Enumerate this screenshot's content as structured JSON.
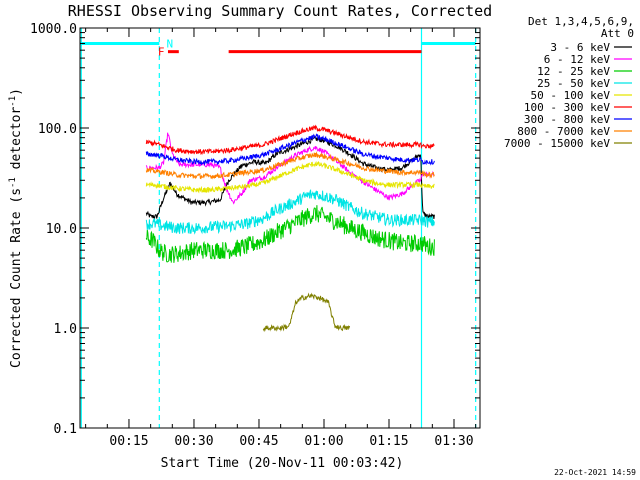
{
  "chart_data": {
    "type": "line",
    "title": "RHESSI Observing Summary Count Rates, Corrected",
    "xlabel": "Start Time (20-Nov-11 00:03:42)",
    "ylabel_main": "Corrected Count Rate (s",
    "ylabel_sup1": "-1",
    "ylabel_mid": " detector",
    "ylabel_sup2": "-1",
    "ylabel_end": ")",
    "yscale": "log",
    "ylim": [
      0.1,
      1000.0
    ],
    "xlim_minutes": [
      3.7,
      96.0
    ],
    "yticks": [
      {
        "value": 1000.0,
        "label": "1000.0"
      },
      {
        "value": 100.0,
        "label": "100.0"
      },
      {
        "value": 10.0,
        "label": "10.0"
      },
      {
        "value": 1.0,
        "label": "1.0"
      },
      {
        "value": 0.1,
        "label": "0.1"
      }
    ],
    "xticks": [
      {
        "value": 15,
        "label": "00:15"
      },
      {
        "value": 30,
        "label": "00:30"
      },
      {
        "value": 45,
        "label": "00:45"
      },
      {
        "value": 60,
        "label": "01:00"
      },
      {
        "value": 75,
        "label": "01:15"
      },
      {
        "value": 90,
        "label": "01:30"
      }
    ],
    "legend_header": [
      "Det 1,3,4,5,6,9,",
      "Att 0"
    ],
    "series": [
      {
        "name": "3 - 6 keV",
        "color": "#000000",
        "points": [
          [
            19.0,
            14
          ],
          [
            20.0,
            13
          ],
          [
            21.5,
            13
          ],
          [
            23.0,
            20
          ],
          [
            24.5,
            28
          ],
          [
            26.0,
            22
          ],
          [
            27.5,
            20
          ],
          [
            29.5,
            18
          ],
          [
            33.0,
            18
          ],
          [
            36.0,
            19
          ],
          [
            38.0,
            30
          ],
          [
            41.0,
            42
          ],
          [
            44.0,
            46
          ],
          [
            46.5,
            44
          ],
          [
            49.0,
            55
          ],
          [
            53.0,
            64
          ],
          [
            56.0,
            72
          ],
          [
            58.0,
            78
          ],
          [
            60.0,
            75
          ],
          [
            63.0,
            66
          ],
          [
            66.0,
            55
          ],
          [
            69.0,
            44
          ],
          [
            72.0,
            40
          ],
          [
            75.0,
            38
          ],
          [
            78.0,
            40
          ],
          [
            81.0,
            50
          ],
          [
            82.3,
            55
          ],
          [
            82.8,
            14
          ],
          [
            84.0,
            13
          ],
          [
            85.5,
            13
          ]
        ]
      },
      {
        "name": "6 - 12 keV",
        "color": "#ff00ff",
        "points": [
          [
            19.0,
            40
          ],
          [
            20.5,
            40
          ],
          [
            22.0,
            40
          ],
          [
            23.0,
            45
          ],
          [
            24.0,
            90
          ],
          [
            25.0,
            55
          ],
          [
            26.5,
            43
          ],
          [
            30.0,
            43
          ],
          [
            34.0,
            43
          ],
          [
            36.0,
            40
          ],
          [
            37.5,
            25
          ],
          [
            39.0,
            18
          ],
          [
            41.0,
            22
          ],
          [
            43.0,
            30
          ],
          [
            46.0,
            32
          ],
          [
            49.0,
            40
          ],
          [
            53.0,
            52
          ],
          [
            56.0,
            60
          ],
          [
            58.0,
            64
          ],
          [
            60.0,
            58
          ],
          [
            63.0,
            46
          ],
          [
            66.0,
            36
          ],
          [
            69.0,
            29
          ],
          [
            72.0,
            24
          ],
          [
            75.0,
            20
          ],
          [
            78.0,
            22
          ],
          [
            81.0,
            28
          ],
          [
            82.3,
            30
          ],
          [
            82.8,
            35
          ],
          [
            84.0,
            34
          ],
          [
            85.5,
            34
          ]
        ]
      },
      {
        "name": "12 - 25 keV",
        "color": "#00cc00",
        "points": [
          [
            19.0,
            8
          ],
          [
            20.5,
            7.5
          ],
          [
            22.0,
            6
          ],
          [
            23.5,
            5.5
          ],
          [
            26.0,
            5.5
          ],
          [
            30.0,
            6
          ],
          [
            34.0,
            6
          ],
          [
            38.0,
            6
          ],
          [
            42.0,
            6.5
          ],
          [
            46.0,
            7.5
          ],
          [
            49.0,
            9
          ],
          [
            53.0,
            11
          ],
          [
            56.0,
            13
          ],
          [
            58.0,
            14
          ],
          [
            60.0,
            13
          ],
          [
            63.0,
            11.5
          ],
          [
            66.0,
            10
          ],
          [
            69.0,
            9
          ],
          [
            72.0,
            8
          ],
          [
            75.0,
            7.5
          ],
          [
            78.0,
            7
          ],
          [
            81.0,
            7
          ],
          [
            82.3,
            7
          ],
          [
            82.8,
            7
          ],
          [
            84.0,
            6.5
          ],
          [
            85.5,
            6.5
          ]
        ]
      },
      {
        "name": "25 - 50 keV",
        "color": "#00e5e5",
        "points": [
          [
            19.0,
            11
          ],
          [
            21.0,
            11
          ],
          [
            23.0,
            10.5
          ],
          [
            26.0,
            10
          ],
          [
            30.0,
            10
          ],
          [
            34.0,
            10.2
          ],
          [
            38.0,
            10.5
          ],
          [
            42.0,
            11
          ],
          [
            46.0,
            12.5
          ],
          [
            49.0,
            15
          ],
          [
            53.0,
            18
          ],
          [
            56.0,
            21
          ],
          [
            58.0,
            22
          ],
          [
            60.0,
            21
          ],
          [
            63.0,
            19
          ],
          [
            66.0,
            16
          ],
          [
            69.0,
            14
          ],
          [
            72.0,
            13
          ],
          [
            75.0,
            12
          ],
          [
            78.0,
            12
          ],
          [
            81.0,
            12
          ],
          [
            82.3,
            12
          ],
          [
            82.8,
            12
          ],
          [
            84.0,
            11.5
          ],
          [
            85.5,
            11.5
          ]
        ]
      },
      {
        "name": "50 - 100 keV",
        "color": "#e5e500",
        "points": [
          [
            19.0,
            27
          ],
          [
            21.0,
            27
          ],
          [
            23.0,
            26
          ],
          [
            26.0,
            25
          ],
          [
            30.0,
            24
          ],
          [
            34.0,
            24
          ],
          [
            38.0,
            25
          ],
          [
            42.0,
            26
          ],
          [
            46.0,
            28
          ],
          [
            49.0,
            32
          ],
          [
            53.0,
            38
          ],
          [
            56.0,
            42
          ],
          [
            58.0,
            44
          ],
          [
            60.0,
            42
          ],
          [
            63.0,
            38
          ],
          [
            66.0,
            34
          ],
          [
            69.0,
            30
          ],
          [
            72.0,
            28
          ],
          [
            75.0,
            27
          ],
          [
            78.0,
            27
          ],
          [
            81.0,
            27
          ],
          [
            82.3,
            27
          ],
          [
            82.8,
            26
          ],
          [
            84.0,
            26
          ],
          [
            85.5,
            26
          ]
        ]
      },
      {
        "name": "100 - 300 keV",
        "color": "#ff0000",
        "points": [
          [
            19.0,
            72
          ],
          [
            21.0,
            70
          ],
          [
            23.0,
            66
          ],
          [
            26.0,
            60
          ],
          [
            30.0,
            58
          ],
          [
            34.0,
            58
          ],
          [
            38.0,
            60
          ],
          [
            42.0,
            64
          ],
          [
            46.0,
            68
          ],
          [
            49.0,
            76
          ],
          [
            53.0,
            88
          ],
          [
            56.0,
            96
          ],
          [
            58.0,
            100
          ],
          [
            60.0,
            96
          ],
          [
            63.0,
            88
          ],
          [
            66.0,
            80
          ],
          [
            69.0,
            73
          ],
          [
            72.0,
            70
          ],
          [
            75.0,
            68
          ],
          [
            78.0,
            68
          ],
          [
            81.0,
            68
          ],
          [
            82.3,
            68
          ],
          [
            82.8,
            66
          ],
          [
            84.0,
            66
          ],
          [
            85.5,
            66
          ]
        ]
      },
      {
        "name": "300 - 800 keV",
        "color": "#0000ff",
        "points": [
          [
            19.0,
            55
          ],
          [
            21.0,
            54
          ],
          [
            23.0,
            52
          ],
          [
            26.0,
            48
          ],
          [
            30.0,
            46
          ],
          [
            34.0,
            46
          ],
          [
            38.0,
            47
          ],
          [
            42.0,
            50
          ],
          [
            46.0,
            54
          ],
          [
            49.0,
            60
          ],
          [
            53.0,
            70
          ],
          [
            56.0,
            78
          ],
          [
            58.0,
            82
          ],
          [
            60.0,
            78
          ],
          [
            63.0,
            70
          ],
          [
            66.0,
            62
          ],
          [
            69.0,
            55
          ],
          [
            72.0,
            52
          ],
          [
            75.0,
            50
          ],
          [
            78.0,
            48
          ],
          [
            81.0,
            48
          ],
          [
            82.3,
            48
          ],
          [
            82.8,
            46
          ],
          [
            84.0,
            46
          ],
          [
            85.5,
            46
          ]
        ]
      },
      {
        "name": "800 - 7000 keV",
        "color": "#ff8000",
        "points": [
          [
            19.0,
            38
          ],
          [
            21.0,
            37
          ],
          [
            23.0,
            36
          ],
          [
            26.0,
            34
          ],
          [
            30.0,
            33
          ],
          [
            34.0,
            33
          ],
          [
            38.0,
            34
          ],
          [
            42.0,
            36
          ],
          [
            46.0,
            38
          ],
          [
            49.0,
            42
          ],
          [
            53.0,
            48
          ],
          [
            56.0,
            52
          ],
          [
            58.0,
            54
          ],
          [
            60.0,
            52
          ],
          [
            63.0,
            48
          ],
          [
            66.0,
            44
          ],
          [
            69.0,
            40
          ],
          [
            72.0,
            38
          ],
          [
            75.0,
            37
          ],
          [
            78.0,
            36
          ],
          [
            81.0,
            36
          ],
          [
            82.3,
            36
          ],
          [
            82.8,
            35
          ],
          [
            84.0,
            34
          ],
          [
            85.5,
            34
          ]
        ]
      },
      {
        "name": "7000 - 15000 keV",
        "color": "#808000",
        "points": [
          [
            46.0,
            1.0
          ],
          [
            48.0,
            1.0
          ],
          [
            50.0,
            1.0
          ],
          [
            52.0,
            1.05
          ],
          [
            53.5,
            1.8
          ],
          [
            55.0,
            2.0
          ],
          [
            57.0,
            2.1
          ],
          [
            59.0,
            2.0
          ],
          [
            61.0,
            1.8
          ],
          [
            62.5,
            1.05
          ],
          [
            64.0,
            1.0
          ],
          [
            66.0,
            1.0
          ]
        ]
      }
    ],
    "flag_bars": [
      {
        "label": "",
        "color": "#00ffff",
        "y": 700,
        "segments": [
          [
            3.7,
            22.0
          ],
          [
            82.5,
            95.0
          ]
        ]
      },
      {
        "label": "F",
        "color": "#ff0000",
        "y": 580,
        "segments": [
          [
            24.0,
            26.5
          ],
          [
            38.0,
            82.5
          ]
        ]
      }
    ],
    "flag_letters": [
      {
        "label": "F",
        "color": "#ff0000",
        "x": 23.2,
        "y": 580
      },
      {
        "label": "N",
        "color": "#00ffff",
        "x": 23.2,
        "y": 700
      }
    ],
    "vlines": [
      {
        "x": 4.0,
        "color": "#00ffff",
        "style": "solid"
      },
      {
        "x": 22.0,
        "color": "#00ffff",
        "style": "dashed"
      },
      {
        "x": 82.5,
        "color": "#00ffff",
        "style": "solid"
      },
      {
        "x": 95.0,
        "color": "#00ffff",
        "style": "dashed"
      }
    ],
    "timestamp": "22-Oct-2021 14:59"
  }
}
